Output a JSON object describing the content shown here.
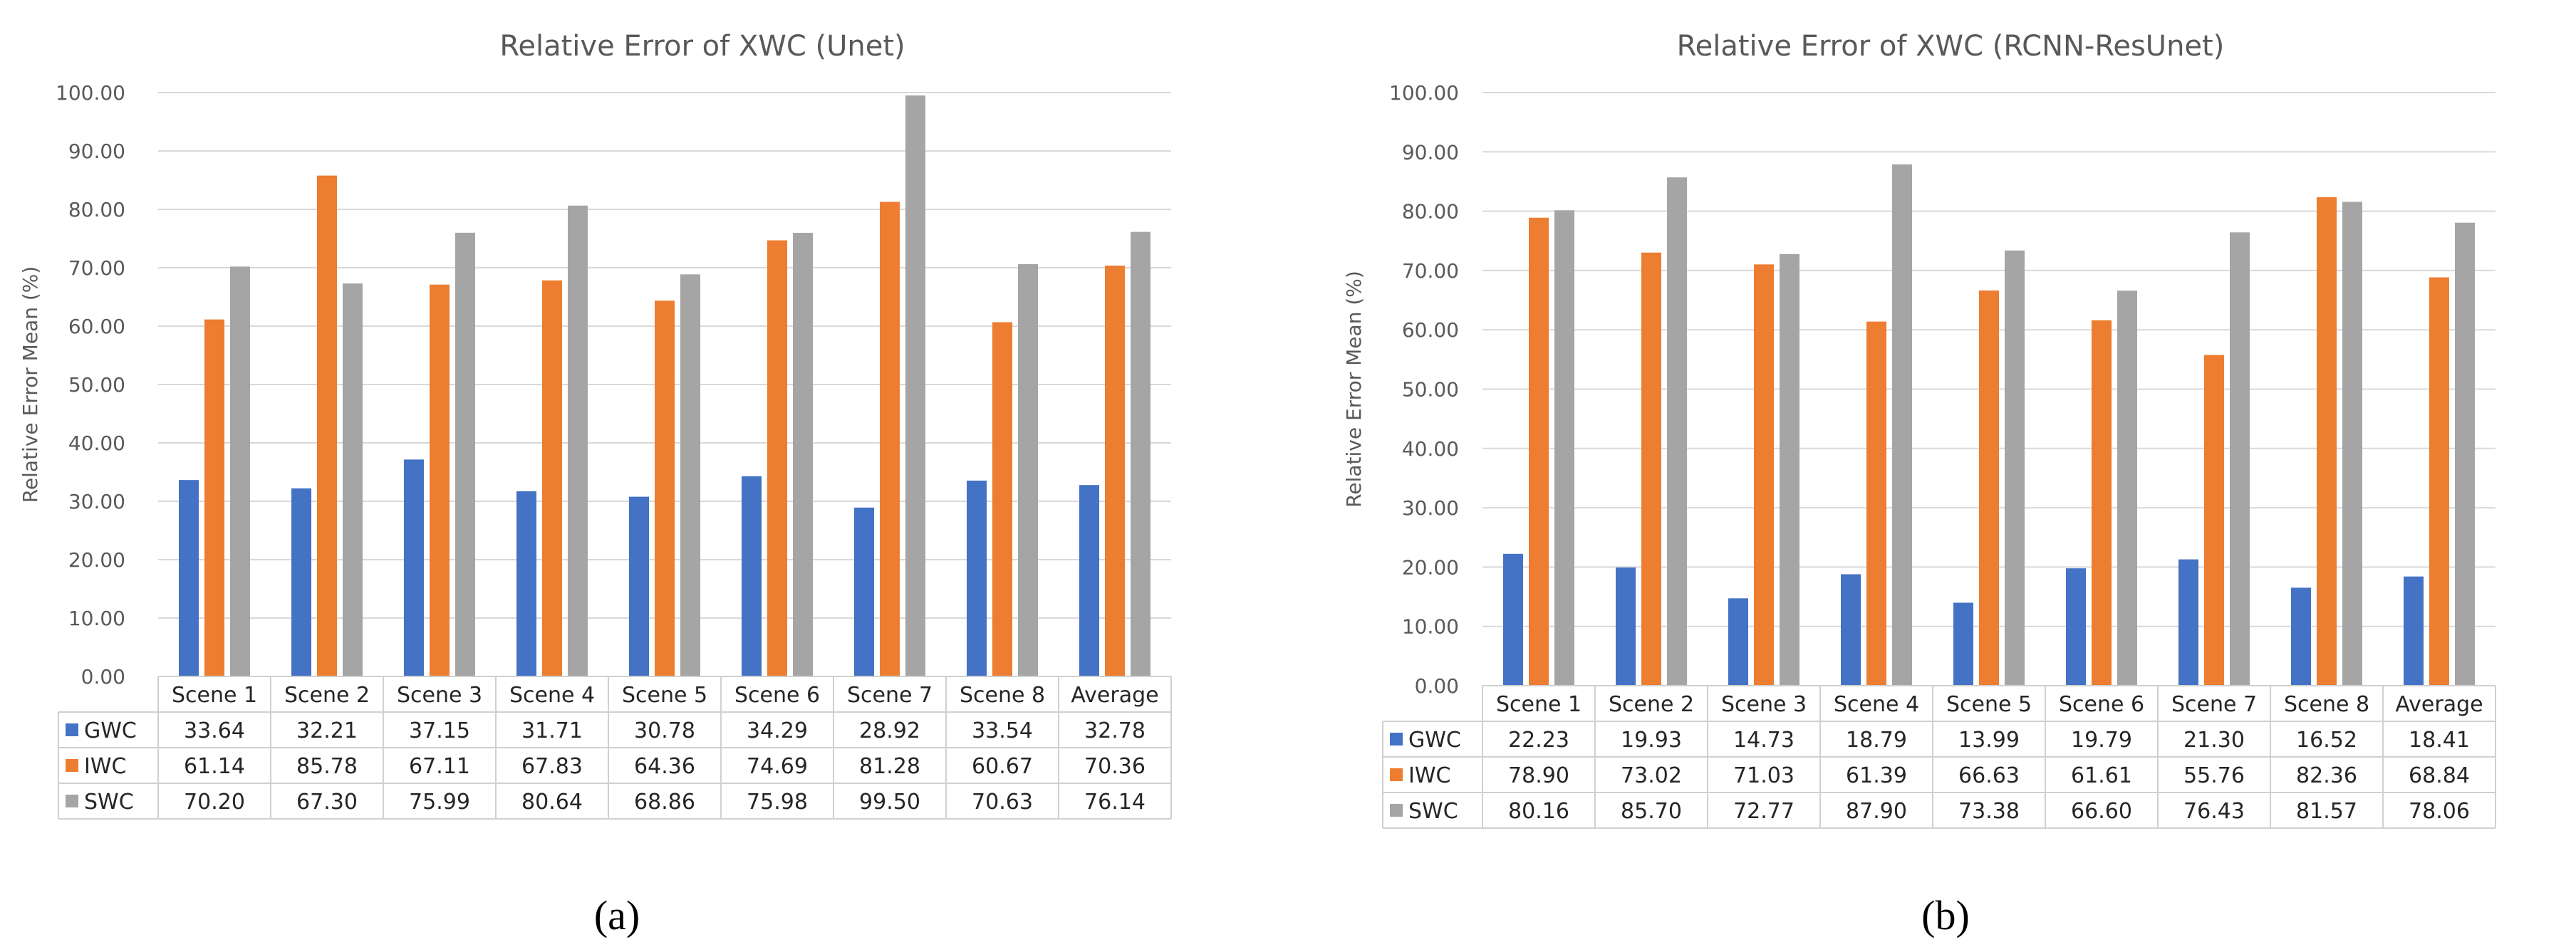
{
  "colors": {
    "GWC": "#4472C4",
    "IWC": "#ED7D31",
    "SWC": "#A5A5A5"
  },
  "chart_data": [
    {
      "type": "bar",
      "title": "Relative Error of XWC (Unet)",
      "ylabel": "Relative Error Mean (%)",
      "xlabel": "",
      "ylim": [
        0,
        100
      ],
      "yticks": [
        "0.00",
        "10.00",
        "20.00",
        "30.00",
        "40.00",
        "50.00",
        "60.00",
        "70.00",
        "80.00",
        "90.00",
        "100.00"
      ],
      "categories": [
        "Scene 1",
        "Scene 2",
        "Scene 3",
        "Scene 4",
        "Scene 5",
        "Scene 6",
        "Scene 7",
        "Scene 8",
        "Average"
      ],
      "series": [
        {
          "name": "GWC",
          "values": [
            33.64,
            32.21,
            37.15,
            31.71,
            30.78,
            34.29,
            28.92,
            33.54,
            32.78
          ],
          "labels": [
            "33.64",
            "32.21",
            "37.15",
            "31.71",
            "30.78",
            "34.29",
            "28.92",
            "33.54",
            "32.78"
          ]
        },
        {
          "name": "IWC",
          "values": [
            61.14,
            85.78,
            67.11,
            67.83,
            64.36,
            74.69,
            81.28,
            60.67,
            70.36
          ],
          "labels": [
            "61.14",
            "85.78",
            "67.11",
            "67.83",
            "64.36",
            "74.69",
            "81.28",
            "60.67",
            "70.36"
          ]
        },
        {
          "name": "SWC",
          "values": [
            70.2,
            67.3,
            75.99,
            80.64,
            68.86,
            75.98,
            99.5,
            70.63,
            76.14
          ],
          "labels": [
            "70.20",
            "67.30",
            "75.99",
            "80.64",
            "68.86",
            "75.98",
            "99.50",
            "70.63",
            "76.14"
          ]
        }
      ],
      "caption": "(a)"
    },
    {
      "type": "bar",
      "title": "Relative Error of XWC (RCNN-ResUnet)",
      "ylabel": "Relative Error Mean (%)",
      "xlabel": "",
      "ylim": [
        0,
        100
      ],
      "yticks": [
        "0.00",
        "10.00",
        "20.00",
        "30.00",
        "40.00",
        "50.00",
        "60.00",
        "70.00",
        "80.00",
        "90.00",
        "100.00"
      ],
      "categories": [
        "Scene 1",
        "Scene 2",
        "Scene 3",
        "Scene 4",
        "Scene 5",
        "Scene 6",
        "Scene 7",
        "Scene 8",
        "Average"
      ],
      "series": [
        {
          "name": "GWC",
          "values": [
            22.23,
            19.93,
            14.73,
            18.79,
            13.99,
            19.79,
            21.3,
            16.52,
            18.41
          ],
          "labels": [
            "22.23",
            "19.93",
            "14.73",
            "18.79",
            "13.99",
            "19.79",
            "21.30",
            "16.52",
            "18.41"
          ]
        },
        {
          "name": "IWC",
          "values": [
            78.9,
            73.02,
            71.03,
            61.39,
            66.63,
            61.61,
            55.76,
            82.36,
            68.84
          ],
          "labels": [
            "78.90",
            "73.02",
            "71.03",
            "61.39",
            "66.63",
            "61.61",
            "55.76",
            "82.36",
            "68.84"
          ]
        },
        {
          "name": "SWC",
          "values": [
            80.16,
            85.7,
            72.77,
            87.9,
            73.38,
            66.6,
            76.43,
            81.57,
            78.06
          ],
          "labels": [
            "80.16",
            "85.70",
            "72.77",
            "87.90",
            "73.38",
            "66.60",
            "76.43",
            "81.57",
            "78.06"
          ]
        }
      ],
      "caption": "(b)"
    }
  ]
}
